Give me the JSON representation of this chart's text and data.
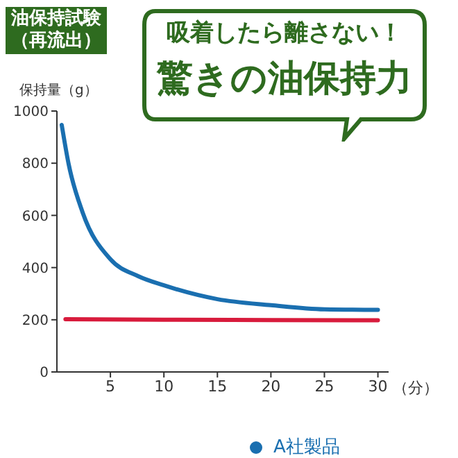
{
  "chart_data": {
    "type": "line",
    "title": "油保持試験",
    "subtitle": "（再流出）",
    "annotations": [
      "吸着したら離さない！",
      "驚きの油保持力"
    ],
    "ylabel": "保持量（g）",
    "xlabel": "（分）",
    "series": [
      {
        "color": "#d81b3c",
        "x": [
          0.8,
          10,
          20,
          30
        ],
        "values": [
          202,
          200,
          199,
          198
        ]
      },
      {
        "name": "A社製品",
        "color": "#1a6fb0",
        "x": [
          0.45,
          1.1,
          2.4,
          5,
          7.6,
          10,
          15,
          20,
          25,
          30
        ],
        "values": [
          947,
          796,
          612,
          432,
          367,
          332,
          279,
          256,
          240,
          238
        ]
      }
    ],
    "xlim": [
      0,
      31
    ],
    "xticks": [
      5,
      10,
      15,
      20,
      25,
      30
    ],
    "ylim": [
      0,
      1000
    ],
    "yticks": [
      0,
      200,
      400,
      600,
      800,
      1000
    ],
    "grid": false,
    "legend": "bottom right"
  }
}
